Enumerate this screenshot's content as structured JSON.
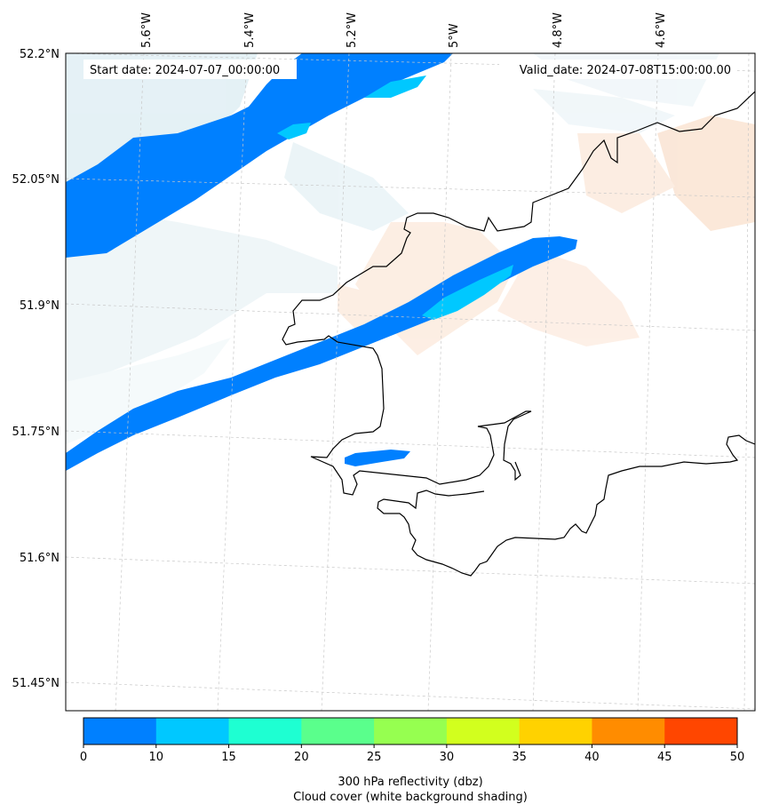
{
  "header": {
    "start_date": "Start date: 2024-07-07_00:00:00",
    "valid_date": "Valid_date: 2024-07-08T15:00:00.00"
  },
  "axes": {
    "lon_labels": [
      "5.6°W",
      "5.4°W",
      "5.2°W",
      "5°W",
      "4.8°W",
      "4.6°W"
    ],
    "lat_labels": [
      "52.2°N",
      "52.05°N",
      "51.9°N",
      "51.75°N",
      "51.6°N",
      "51.45°N"
    ]
  },
  "colorbar": {
    "ticks": [
      "0",
      "10",
      "15",
      "20",
      "25",
      "30",
      "35",
      "40",
      "45",
      "50"
    ],
    "colors": [
      "#0080ff",
      "#00c8ff",
      "#1effd2",
      "#5aff8c",
      "#96ff50",
      "#d2ff1e",
      "#ffd200",
      "#ff8c00",
      "#ff4600"
    ],
    "label_line1": "300 hPa reflectivity (dbz)",
    "label_line2": "Cloud cover (white background shading)"
  },
  "legend_colors": {
    "cloud_light": "#d8eaf1",
    "cloud_warm": "#f8d8c0",
    "coastline": "#000000",
    "gridline": "#c8c8c8"
  }
}
